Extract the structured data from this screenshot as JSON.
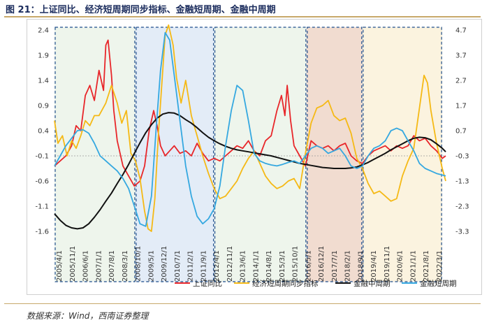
{
  "header": {
    "title": "图 21：上证同比、经济短周期同步指标、金融短周期、金融中周期"
  },
  "footer": {
    "source": "数据来源：Wind，西南证券整理"
  },
  "chart_data": {
    "type": "line",
    "grid": false,
    "legend_position": "bottom",
    "x_tick_labels": [
      "2005/4/1",
      "2005/11/1",
      "2006/6/1",
      "2007/1/1",
      "2007/8/1",
      "2008/3/1",
      "2008/10/1",
      "2009/5/1",
      "2009/12/1",
      "2010/7/1",
      "2011/2/1",
      "2011/9/1",
      "2012/4/1",
      "2012/11/1",
      "2013/6/1",
      "2014/1/1",
      "2014/8/1",
      "2015/3/1",
      "2015/10/1",
      "2016/5/1",
      "2016/12/1",
      "2017/7/1",
      "2018/2/1",
      "2018/9/1",
      "2019/4/1",
      "2019/11/1",
      "2020/6/1",
      "2021/1/1",
      "2021/8/1",
      "2022/3/1"
    ],
    "x_range": [
      2005.25,
      2022.4
    ],
    "y_left": {
      "ticks": [
        "2.4",
        "1.9",
        "1.4",
        "0.9",
        "0.4",
        "-0.1",
        "-0.6",
        "-1.1",
        "-1.6"
      ],
      "range": [
        -1.6,
        2.4
      ]
    },
    "y_right": {
      "ticks": [
        "4.7",
        "3.7",
        "2.7",
        "1.7",
        "0.7",
        "-0.3",
        "-1.3",
        "-2.3",
        "-3.3"
      ],
      "range": [
        -3.3,
        4.7
      ]
    },
    "shaded_periods": [
      {
        "start": 2005.25,
        "end": 2008.8,
        "fill": "#eef5ec"
      },
      {
        "start": 2008.8,
        "end": 2012.25,
        "fill": "#e3ecf7"
      },
      {
        "start": 2012.25,
        "end": 2016.3,
        "fill": "#eef5ec"
      },
      {
        "start": 2016.3,
        "end": 2018.75,
        "fill": "#f1dcd0"
      },
      {
        "start": 2018.75,
        "end": 2022.25,
        "fill": "#fbf3df"
      }
    ],
    "series": [
      {
        "name": "上证同比",
        "axis": "left",
        "color": "#e8262a",
        "x": [
          2005.25,
          2005.5,
          2005.75,
          2006.0,
          2006.2,
          2006.4,
          2006.6,
          2006.8,
          2007.0,
          2007.2,
          2007.4,
          2007.5,
          2007.6,
          2007.75,
          2007.85,
          2008.0,
          2008.25,
          2008.5,
          2008.75,
          2009.0,
          2009.2,
          2009.4,
          2009.6,
          2009.75,
          2009.9,
          2010.1,
          2010.3,
          2010.5,
          2010.75,
          2011.0,
          2011.25,
          2011.5,
          2011.75,
          2012.0,
          2012.25,
          2012.5,
          2012.75,
          2013.0,
          2013.25,
          2013.5,
          2013.75,
          2014.0,
          2014.25,
          2014.5,
          2014.75,
          2015.0,
          2015.2,
          2015.35,
          2015.45,
          2015.6,
          2015.75,
          2016.0,
          2016.25,
          2016.5,
          2016.75,
          2017.0,
          2017.25,
          2017.5,
          2017.75,
          2018.0,
          2018.25,
          2018.5,
          2018.75,
          2019.0,
          2019.25,
          2019.5,
          2019.75,
          2020.0,
          2020.25,
          2020.5,
          2020.75,
          2021.0,
          2021.25,
          2021.5,
          2021.75,
          2022.0,
          2022.25,
          2022.4
        ],
        "y": [
          -0.3,
          -0.2,
          -0.1,
          0.1,
          0.5,
          0.4,
          1.1,
          1.3,
          1.0,
          1.6,
          1.2,
          2.1,
          2.2,
          1.5,
          0.8,
          0.2,
          -0.3,
          -0.5,
          -0.7,
          -0.6,
          -0.3,
          0.4,
          0.8,
          0.5,
          0.1,
          -0.1,
          0.0,
          0.1,
          -0.05,
          0.0,
          -0.1,
          0.15,
          -0.05,
          -0.2,
          -0.15,
          -0.2,
          -0.1,
          0.0,
          0.1,
          0.05,
          0.2,
          0.0,
          -0.1,
          0.2,
          0.3,
          0.8,
          1.1,
          0.7,
          1.3,
          0.6,
          0.1,
          -0.1,
          -0.3,
          0.2,
          0.1,
          0.05,
          0.1,
          0.0,
          0.1,
          0.15,
          -0.1,
          -0.2,
          -0.25,
          -0.1,
          0.0,
          0.05,
          0.1,
          0.0,
          0.1,
          0.05,
          0.1,
          0.3,
          0.2,
          0.25,
          0.1,
          0.0,
          -0.15,
          -0.1
        ]
      },
      {
        "name": "经济短周期同步指标",
        "axis": "right",
        "color": "#f5b915",
        "x": [
          2005.25,
          2005.4,
          2005.6,
          2005.8,
          2006.0,
          2006.2,
          2006.4,
          2006.6,
          2006.8,
          2007.0,
          2007.2,
          2007.5,
          2007.75,
          2008.0,
          2008.2,
          2008.4,
          2008.6,
          2008.8,
          2009.0,
          2009.2,
          2009.35,
          2009.5,
          2009.65,
          2009.8,
          2009.95,
          2010.1,
          2010.25,
          2010.45,
          2010.6,
          2010.8,
          2011.0,
          2011.25,
          2011.5,
          2011.75,
          2012.0,
          2012.25,
          2012.5,
          2012.75,
          2013.0,
          2013.25,
          2013.5,
          2013.75,
          2014.0,
          2014.25,
          2014.5,
          2014.75,
          2015.0,
          2015.25,
          2015.5,
          2015.75,
          2016.0,
          2016.25,
          2016.5,
          2016.75,
          2017.0,
          2017.25,
          2017.5,
          2017.75,
          2018.0,
          2018.25,
          2018.5,
          2018.75,
          2019.0,
          2019.25,
          2019.5,
          2019.75,
          2020.0,
          2020.25,
          2020.5,
          2020.75,
          2021.0,
          2021.25,
          2021.45,
          2021.6,
          2021.75,
          2022.0,
          2022.25,
          2022.4
        ],
        "y": [
          1.1,
          0.2,
          0.5,
          -0.3,
          0.3,
          0.0,
          0.5,
          1.1,
          0.9,
          1.3,
          1.3,
          1.8,
          2.5,
          1.8,
          1.0,
          1.5,
          -0.2,
          -0.5,
          -1.2,
          -2.5,
          -3.2,
          -3.3,
          -2.0,
          0.5,
          2.5,
          4.5,
          4.9,
          4.1,
          2.8,
          1.8,
          2.7,
          1.3,
          0.5,
          -0.3,
          -1.0,
          -1.6,
          -2.0,
          -1.9,
          -1.6,
          -1.3,
          -0.8,
          -0.4,
          -0.1,
          -0.6,
          -1.1,
          -1.4,
          -1.6,
          -1.5,
          -1.3,
          -1.2,
          -1.6,
          -0.2,
          1.0,
          1.6,
          1.7,
          1.9,
          1.3,
          1.1,
          1.2,
          0.6,
          -0.4,
          -0.8,
          -1.4,
          -1.8,
          -1.7,
          -1.9,
          -2.1,
          -2.0,
          -1.1,
          -0.5,
          0.0,
          1.6,
          2.9,
          2.6,
          1.5,
          0.2,
          -0.8,
          -1.3
        ]
      },
      {
        "name": "金融中周期",
        "axis": "left",
        "color": "#111111",
        "x": [
          2005.25,
          2005.5,
          2005.75,
          2006.0,
          2006.25,
          2006.5,
          2006.75,
          2007.0,
          2007.25,
          2007.5,
          2007.75,
          2008.0,
          2008.25,
          2008.5,
          2008.75,
          2009.0,
          2009.25,
          2009.5,
          2009.75,
          2010.0,
          2010.25,
          2010.5,
          2010.75,
          2011.0,
          2011.25,
          2011.5,
          2011.75,
          2012.0,
          2012.25,
          2012.5,
          2012.75,
          2013.0,
          2013.25,
          2013.5,
          2013.75,
          2014.0,
          2014.25,
          2014.5,
          2014.75,
          2015.0,
          2015.25,
          2015.5,
          2015.75,
          2016.0,
          2016.25,
          2016.5,
          2016.75,
          2017.0,
          2017.25,
          2017.5,
          2017.75,
          2018.0,
          2018.25,
          2018.5,
          2018.75,
          2019.0,
          2019.25,
          2019.5,
          2019.75,
          2020.0,
          2020.25,
          2020.5,
          2020.75,
          2021.0,
          2021.25,
          2021.5,
          2021.75,
          2022.0,
          2022.25,
          2022.4
        ],
        "y": [
          -1.25,
          -1.38,
          -1.48,
          -1.53,
          -1.55,
          -1.53,
          -1.45,
          -1.32,
          -1.17,
          -1.0,
          -0.84,
          -0.65,
          -0.47,
          -0.27,
          -0.05,
          0.16,
          0.36,
          0.52,
          0.65,
          0.73,
          0.76,
          0.75,
          0.7,
          0.62,
          0.55,
          0.46,
          0.36,
          0.27,
          0.2,
          0.14,
          0.09,
          0.05,
          0.02,
          0.0,
          -0.02,
          -0.04,
          -0.06,
          -0.08,
          -0.1,
          -0.13,
          -0.16,
          -0.19,
          -0.22,
          -0.25,
          -0.27,
          -0.29,
          -0.31,
          -0.33,
          -0.34,
          -0.35,
          -0.35,
          -0.35,
          -0.34,
          -0.32,
          -0.28,
          -0.23,
          -0.17,
          -0.11,
          -0.05,
          0.02,
          0.08,
          0.14,
          0.2,
          0.25,
          0.27,
          0.26,
          0.22,
          0.14,
          0.05,
          -0.02
        ]
      },
      {
        "name": "金融短周期",
        "axis": "left",
        "color": "#35a8e0",
        "x": [
          2005.25,
          2005.5,
          2005.75,
          2006.0,
          2006.25,
          2006.5,
          2006.75,
          2007.0,
          2007.25,
          2007.5,
          2007.75,
          2008.0,
          2008.25,
          2008.5,
          2008.75,
          2009.0,
          2009.25,
          2009.5,
          2009.7,
          2009.9,
          2010.1,
          2010.3,
          2010.5,
          2010.75,
          2011.0,
          2011.25,
          2011.5,
          2011.75,
          2012.0,
          2012.25,
          2012.5,
          2012.75,
          2013.0,
          2013.25,
          2013.5,
          2013.75,
          2014.0,
          2014.25,
          2014.5,
          2014.75,
          2015.0,
          2015.25,
          2015.5,
          2015.75,
          2016.0,
          2016.25,
          2016.5,
          2016.75,
          2017.0,
          2017.25,
          2017.5,
          2017.75,
          2018.0,
          2018.25,
          2018.5,
          2018.75,
          2019.0,
          2019.25,
          2019.5,
          2019.75,
          2020.0,
          2020.25,
          2020.5,
          2020.75,
          2021.0,
          2021.25,
          2021.5,
          2021.75,
          2022.0,
          2022.25,
          2022.4
        ],
        "y": [
          -0.3,
          -0.1,
          0.1,
          0.25,
          0.4,
          0.42,
          0.35,
          0.15,
          -0.1,
          -0.2,
          -0.3,
          -0.4,
          -0.55,
          -0.75,
          -1.1,
          -1.45,
          -1.5,
          -0.9,
          0.4,
          1.6,
          2.35,
          2.2,
          1.5,
          0.6,
          -0.3,
          -0.9,
          -1.3,
          -1.45,
          -1.35,
          -1.15,
          -0.7,
          0.1,
          0.8,
          1.3,
          1.2,
          0.6,
          -0.05,
          -0.2,
          -0.25,
          -0.28,
          -0.3,
          -0.27,
          -0.23,
          -0.2,
          -0.25,
          -0.1,
          0.05,
          0.1,
          0.05,
          -0.05,
          0.0,
          0.05,
          -0.1,
          -0.3,
          -0.35,
          -0.3,
          -0.1,
          0.05,
          0.1,
          0.2,
          0.4,
          0.45,
          0.4,
          0.2,
          0.0,
          -0.25,
          -0.35,
          -0.4,
          -0.45,
          -0.48,
          -0.5
        ]
      }
    ]
  }
}
